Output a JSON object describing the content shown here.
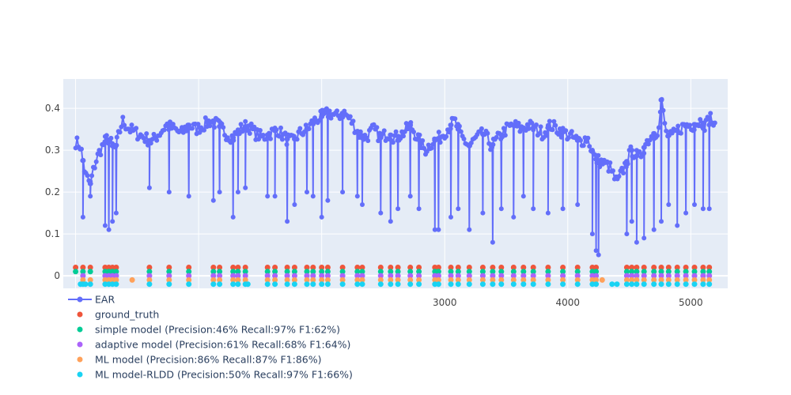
{
  "chart_data": {
    "type": "line",
    "title": "",
    "xlabel": "",
    "ylabel": "",
    "xlim": [
      -100,
      5300
    ],
    "ylim": [
      -0.03,
      0.47
    ],
    "x_ticks": [
      3000,
      4000,
      5000
    ],
    "x_tick_labels": [
      "3000",
      "4000",
      "5000"
    ],
    "y_ticks": [
      0,
      0.1,
      0.2,
      0.3,
      0.4
    ],
    "y_tick_labels": [
      "0",
      "0.1",
      "0.2",
      "0.3",
      "0.4"
    ],
    "grid": true,
    "legend_position": "bottom-left",
    "colors": {
      "plot_bg": "#e5ecf6",
      "grid": "#ffffff",
      "EAR": "#636efa",
      "ground_truth": "#ef553b",
      "simple": "#00cc96",
      "adaptive": "#ab63fa",
      "ml": "#ffa15a",
      "rldd": "#19d3f3"
    },
    "ear_series": {
      "name": "EAR",
      "baseline_segments": [
        {
          "x": [
            0,
            0.31
          ]
        },
        {
          "x": [
            60,
            0.3
          ]
        },
        {
          "x": [
            120,
            0.24
          ]
        },
        {
          "x": [
            200,
            0.28
          ]
        },
        {
          "x": [
            300,
            0.33
          ]
        },
        {
          "x": [
            400,
            0.36
          ]
        },
        {
          "x": [
            600,
            0.34
          ]
        },
        {
          "x": [
            800,
            0.33
          ]
        },
        {
          "x": [
            1000,
            0.36
          ]
        },
        {
          "x": [
            1200,
            0.35
          ]
        },
        {
          "x": [
            1400,
            0.36
          ]
        },
        {
          "x": [
            1600,
            0.34
          ]
        },
        {
          "x": [
            1800,
            0.33
          ]
        },
        {
          "x": [
            2000,
            0.35
          ]
        },
        {
          "x": [
            2200,
            0.38
          ]
        },
        {
          "x": [
            2400,
            0.39
          ]
        },
        {
          "x": [
            2500,
            0.34
          ]
        },
        {
          "x": [
            2700,
            0.32
          ]
        },
        {
          "x": [
            2900,
            0.36
          ]
        },
        {
          "x": [
            3000,
            0.33
          ]
        },
        {
          "x": [
            3200,
            0.34
          ]
        },
        {
          "x": [
            3400,
            0.35
          ]
        },
        {
          "x": [
            3600,
            0.31
          ]
        },
        {
          "x": [
            3800,
            0.32
          ]
        },
        {
          "x": [
            4000,
            0.36
          ]
        },
        {
          "x": [
            4200,
            0.33
          ]
        },
        {
          "x": [
            4400,
            0.34
          ]
        },
        {
          "x": [
            4500,
            0.3
          ]
        },
        {
          "x": [
            4600,
            0.27
          ]
        },
        {
          "x": [
            4700,
            0.25
          ]
        },
        {
          "x": [
            4800,
            0.3
          ]
        },
        {
          "x": [
            4900,
            0.33
          ]
        },
        {
          "x": [
            4950,
            0.38
          ]
        },
        {
          "x": [
            5000,
            0.34
          ]
        }
      ],
      "dips": [
        [
          60,
          0.14
        ],
        [
          120,
          0.19
        ],
        [
          240,
          0.12
        ],
        [
          270,
          0.11
        ],
        [
          300,
          0.13
        ],
        [
          330,
          0.15
        ],
        [
          600,
          0.21
        ],
        [
          760,
          0.2
        ],
        [
          920,
          0.19
        ],
        [
          1120,
          0.18
        ],
        [
          1170,
          0.2
        ],
        [
          1280,
          0.14
        ],
        [
          1320,
          0.2
        ],
        [
          1380,
          0.21
        ],
        [
          1560,
          0.19
        ],
        [
          1620,
          0.19
        ],
        [
          1720,
          0.13
        ],
        [
          1780,
          0.17
        ],
        [
          1880,
          0.2
        ],
        [
          1930,
          0.19
        ],
        [
          2000,
          0.14
        ],
        [
          2050,
          0.18
        ],
        [
          2170,
          0.2
        ],
        [
          2290,
          0.19
        ],
        [
          2330,
          0.17
        ],
        [
          2480,
          0.15
        ],
        [
          2560,
          0.13
        ],
        [
          2620,
          0.16
        ],
        [
          2720,
          0.19
        ],
        [
          2790,
          0.16
        ],
        [
          2920,
          0.11
        ],
        [
          2950,
          0.11
        ],
        [
          3050,
          0.14
        ],
        [
          3110,
          0.16
        ],
        [
          3200,
          0.11
        ],
        [
          3310,
          0.15
        ],
        [
          3390,
          0.08
        ],
        [
          3460,
          0.16
        ],
        [
          3560,
          0.14
        ],
        [
          3640,
          0.19
        ],
        [
          3720,
          0.16
        ],
        [
          3840,
          0.15
        ],
        [
          3960,
          0.16
        ],
        [
          4080,
          0.17
        ],
        [
          4200,
          0.1
        ],
        [
          4230,
          0.06
        ],
        [
          4250,
          0.05
        ],
        [
          4480,
          0.1
        ],
        [
          4520,
          0.13
        ],
        [
          4560,
          0.08
        ],
        [
          4620,
          0.09
        ],
        [
          4700,
          0.11
        ],
        [
          4760,
          0.13
        ],
        [
          4820,
          0.17
        ],
        [
          4890,
          0.12
        ],
        [
          4960,
          0.15
        ],
        [
          5030,
          0.17
        ],
        [
          5100,
          0.16
        ],
        [
          5150,
          0.16
        ]
      ]
    },
    "ear_profile": [
      [
        0,
        0.32
      ],
      [
        40,
        0.31
      ],
      [
        80,
        0.24
      ],
      [
        120,
        0.22
      ],
      [
        160,
        0.27
      ],
      [
        200,
        0.3
      ],
      [
        260,
        0.33
      ],
      [
        320,
        0.3
      ],
      [
        380,
        0.37
      ],
      [
        440,
        0.35
      ],
      [
        500,
        0.34
      ],
      [
        560,
        0.33
      ],
      [
        620,
        0.32
      ],
      [
        680,
        0.34
      ],
      [
        740,
        0.36
      ],
      [
        800,
        0.35
      ],
      [
        860,
        0.34
      ],
      [
        920,
        0.36
      ],
      [
        980,
        0.35
      ],
      [
        1040,
        0.36
      ],
      [
        1100,
        0.37
      ],
      [
        1160,
        0.36
      ],
      [
        1220,
        0.34
      ],
      [
        1280,
        0.33
      ],
      [
        1340,
        0.35
      ],
      [
        1400,
        0.36
      ],
      [
        1460,
        0.34
      ],
      [
        1520,
        0.33
      ],
      [
        1580,
        0.34
      ],
      [
        1640,
        0.35
      ],
      [
        1700,
        0.33
      ],
      [
        1760,
        0.32
      ],
      [
        1820,
        0.34
      ],
      [
        1880,
        0.35
      ],
      [
        1940,
        0.37
      ],
      [
        2000,
        0.38
      ],
      [
        2060,
        0.39
      ],
      [
        2120,
        0.38
      ],
      [
        2180,
        0.39
      ],
      [
        2240,
        0.37
      ],
      [
        2300,
        0.34
      ],
      [
        2360,
        0.33
      ],
      [
        2420,
        0.35
      ],
      [
        2480,
        0.33
      ],
      [
        2540,
        0.34
      ],
      [
        2600,
        0.33
      ],
      [
        2660,
        0.34
      ],
      [
        2720,
        0.36
      ],
      [
        2780,
        0.33
      ],
      [
        2840,
        0.3
      ],
      [
        2900,
        0.32
      ],
      [
        2960,
        0.33
      ],
      [
        3020,
        0.35
      ],
      [
        3080,
        0.37
      ],
      [
        3140,
        0.33
      ],
      [
        3200,
        0.31
      ],
      [
        3260,
        0.33
      ],
      [
        3320,
        0.34
      ],
      [
        3380,
        0.31
      ],
      [
        3440,
        0.33
      ],
      [
        3500,
        0.35
      ],
      [
        3560,
        0.36
      ],
      [
        3620,
        0.35
      ],
      [
        3680,
        0.36
      ],
      [
        3740,
        0.35
      ],
      [
        3800,
        0.34
      ],
      [
        3860,
        0.36
      ],
      [
        3920,
        0.35
      ],
      [
        3980,
        0.34
      ],
      [
        4040,
        0.33
      ],
      [
        4100,
        0.32
      ],
      [
        4160,
        0.33
      ],
      [
        4220,
        0.28
      ],
      [
        4280,
        0.27
      ],
      [
        4340,
        0.26
      ],
      [
        4400,
        0.22
      ],
      [
        4460,
        0.26
      ],
      [
        4520,
        0.3
      ],
      [
        4580,
        0.28
      ],
      [
        4640,
        0.32
      ],
      [
        4700,
        0.34
      ],
      [
        4740,
        0.35
      ],
      [
        4760,
        0.42
      ],
      [
        4800,
        0.34
      ],
      [
        4840,
        0.33
      ],
      [
        4900,
        0.35
      ],
      [
        4960,
        0.36
      ],
      [
        5020,
        0.36
      ],
      [
        5080,
        0.37
      ],
      [
        5120,
        0.36
      ],
      [
        5160,
        0.38
      ],
      [
        5200,
        0.35
      ]
    ],
    "detections": {
      "ground_truth": {
        "y": 0.02,
        "x": [
          0,
          60,
          120,
          240,
          270,
          300,
          330,
          600,
          760,
          920,
          1120,
          1170,
          1280,
          1320,
          1380,
          1560,
          1620,
          1720,
          1780,
          1880,
          1930,
          2000,
          2050,
          2170,
          2290,
          2330,
          2480,
          2560,
          2620,
          2720,
          2790,
          2920,
          2950,
          3050,
          3110,
          3200,
          3310,
          3390,
          3460,
          3560,
          3640,
          3720,
          3840,
          3960,
          4080,
          4200,
          4230,
          4480,
          4520,
          4560,
          4620,
          4700,
          4760,
          4820,
          4890,
          4960,
          5030,
          5100,
          5150
        ]
      },
      "simple": {
        "y": 0.01,
        "x": [
          0,
          60,
          120,
          240,
          270,
          300,
          330,
          600,
          760,
          920,
          1120,
          1170,
          1280,
          1320,
          1380,
          1560,
          1620,
          1720,
          1780,
          1880,
          1930,
          2000,
          2050,
          2170,
          2290,
          2330,
          2480,
          2560,
          2620,
          2720,
          2790,
          2920,
          2950,
          3050,
          3110,
          3200,
          3310,
          3390,
          3460,
          3560,
          3640,
          3720,
          3840,
          3960,
          4080,
          4200,
          4230,
          4480,
          4520,
          4560,
          4620,
          4700,
          4760,
          4820,
          4890,
          4960,
          5030,
          5100,
          5150
        ]
      },
      "adaptive": {
        "y": 0.0,
        "x": [
          60,
          240,
          270,
          300,
          330,
          600,
          760,
          920,
          1120,
          1170,
          1280,
          1320,
          1380,
          1560,
          1620,
          1720,
          1780,
          1880,
          1930,
          2000,
          2050,
          2170,
          2290,
          2330,
          2480,
          2560,
          2620,
          2720,
          2790,
          2920,
          2950,
          3050,
          3110,
          3200,
          3310,
          3390,
          3460,
          3560,
          3640,
          3720,
          3840,
          3960,
          4080,
          4200,
          4230,
          4480,
          4520,
          4560,
          4620,
          4700,
          4760,
          4820,
          4890,
          4960,
          5030,
          5100,
          5150
        ]
      },
      "ml": {
        "y": -0.01,
        "x": [
          60,
          120,
          240,
          270,
          300,
          330,
          460,
          600,
          760,
          920,
          1120,
          1170,
          1280,
          1320,
          1380,
          1560,
          1620,
          1720,
          1780,
          1880,
          1930,
          2000,
          2050,
          2170,
          2290,
          2330,
          2480,
          2560,
          2620,
          2720,
          2790,
          2920,
          2950,
          3050,
          3110,
          3200,
          3310,
          3390,
          3460,
          3560,
          3640,
          3720,
          3840,
          3960,
          4080,
          4200,
          4230,
          4280,
          4480,
          4520,
          4560,
          4620,
          4700,
          4760,
          4820,
          4890,
          4960,
          5030,
          5100,
          5150
        ]
      },
      "rldd": {
        "y": -0.02,
        "x": [
          40,
          60,
          80,
          120,
          240,
          270,
          300,
          330,
          600,
          760,
          920,
          1120,
          1170,
          1280,
          1320,
          1380,
          1400,
          1560,
          1620,
          1720,
          1780,
          1880,
          1930,
          2000,
          2050,
          2170,
          2290,
          2330,
          2480,
          2560,
          2620,
          2720,
          2790,
          2920,
          2950,
          3050,
          3110,
          3200,
          3310,
          3390,
          3460,
          3560,
          3640,
          3720,
          3840,
          3960,
          4080,
          4200,
          4230,
          4360,
          4400,
          4480,
          4520,
          4560,
          4620,
          4700,
          4760,
          4820,
          4890,
          4960,
          5030,
          5100,
          5150
        ]
      }
    },
    "legend": [
      {
        "key": "EAR",
        "label": "EAR",
        "kind": "line-marker"
      },
      {
        "key": "ground_truth",
        "label": "ground_truth",
        "kind": "marker"
      },
      {
        "key": "simple",
        "label": "simple model (Precision:46% Recall:97% F1:62%)",
        "kind": "marker"
      },
      {
        "key": "adaptive",
        "label": "adaptive model (Precision:61% Recall:68% F1:64%)",
        "kind": "marker"
      },
      {
        "key": "ml",
        "label": "ML model (Precision:86% Recall:87% F1:86%)",
        "kind": "marker"
      },
      {
        "key": "rldd",
        "label": "ML model-RLDD (Precision:50% Recall:97% F1:66%)",
        "kind": "marker"
      }
    ]
  }
}
